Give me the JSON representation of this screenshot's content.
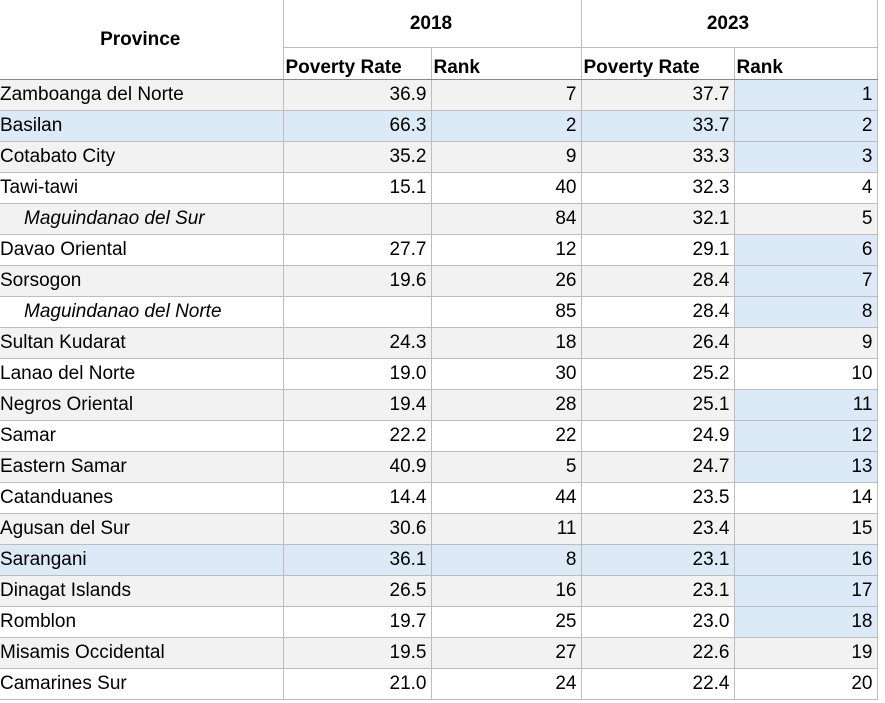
{
  "table": {
    "header": {
      "province": "Province",
      "years": [
        "2018",
        "2023"
      ],
      "columns": [
        "Poverty Rate",
        "Rank",
        "Poverty Rate",
        "Rank"
      ]
    },
    "rows": [
      [
        "Zamboanga del Norte",
        "36.9",
        "7",
        "37.7",
        "1"
      ],
      [
        "Basilan",
        "66.3",
        "2",
        "33.7",
        "2"
      ],
      [
        "Cotabato City",
        "35.2",
        "9",
        "33.3",
        "3"
      ],
      [
        "Tawi-tawi",
        "15.1",
        "40",
        "32.3",
        "4"
      ],
      [
        "Maguindanao del Sur",
        null,
        "84",
        "32.1",
        "5"
      ],
      [
        "Davao Oriental",
        "27.7",
        "12",
        "29.1",
        "6"
      ],
      [
        "Sorsogon",
        "19.6",
        "26",
        "28.4",
        "7"
      ],
      [
        "Maguindanao del Norte",
        null,
        "85",
        "28.4",
        "8"
      ],
      [
        "Sultan Kudarat",
        "24.3",
        "18",
        "26.4",
        "9"
      ],
      [
        "Lanao del Norte",
        "19.0",
        "30",
        "25.2",
        "10"
      ],
      [
        "Negros Oriental",
        "19.4",
        "28",
        "25.1",
        "11"
      ],
      [
        "Samar",
        "22.2",
        "22",
        "24.9",
        "12"
      ],
      [
        "Eastern Samar",
        "40.9",
        "5",
        "24.7",
        "13"
      ],
      [
        "Catanduanes",
        "14.4",
        "44",
        "23.5",
        "14"
      ],
      [
        "Agusan del Sur",
        "30.6",
        "11",
        "23.4",
        "15"
      ],
      [
        "Sarangani",
        "36.1",
        "8",
        "23.1",
        "16"
      ],
      [
        "Dinagat Islands",
        "26.5",
        "16",
        "23.1",
        "17"
      ],
      [
        "Romblon",
        "19.7",
        "25",
        "23.0",
        "18"
      ],
      [
        "Misamis Occidental",
        "19.5",
        "27",
        "22.6",
        "19"
      ],
      [
        "Camarines Sur",
        "21.0",
        "24",
        "22.4",
        "20"
      ]
    ]
  }
}
